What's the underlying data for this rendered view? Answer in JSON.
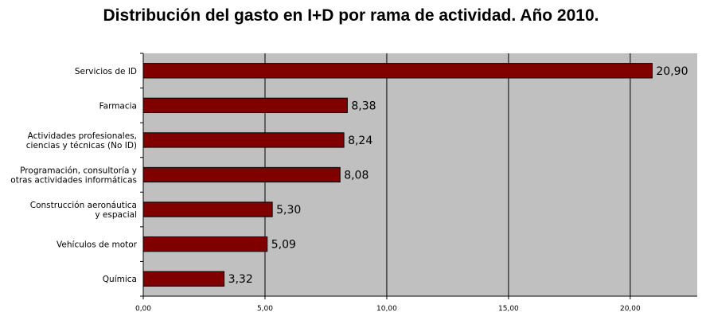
{
  "chart_data": {
    "type": "bar",
    "orientation": "horizontal",
    "title": "Distribución del gasto en I+D por rama de actividad. Año 2010.",
    "categories": [
      [
        "Servicios de ID"
      ],
      [
        "Farmacia"
      ],
      [
        "Actividades profesionales,",
        "ciencias y técnicas (No ID)"
      ],
      [
        "Programación, consultoría y",
        "otras actividades informáticas"
      ],
      [
        "Construcción aeronáutica",
        "y espacial"
      ],
      [
        "Vehículos de motor"
      ],
      [
        "Química"
      ]
    ],
    "values": [
      20.9,
      8.38,
      8.24,
      8.08,
      5.3,
      5.09,
      3.32
    ],
    "data_labels": [
      "20,90",
      "8,38",
      "8,24",
      "8,08",
      "5,30",
      "5,09",
      "3,32"
    ],
    "xlim": [
      0,
      22.75
    ],
    "xticks": [
      0,
      5,
      10,
      15,
      20
    ],
    "xtick_labels": [
      "0,00",
      "5,00",
      "10,00",
      "15,00",
      "20,00"
    ],
    "grid": "vertical",
    "colors": {
      "bar": "#800000",
      "bar_edge": "#000000",
      "plot_background": "#c0c0c0",
      "gridline": "#000000"
    }
  }
}
